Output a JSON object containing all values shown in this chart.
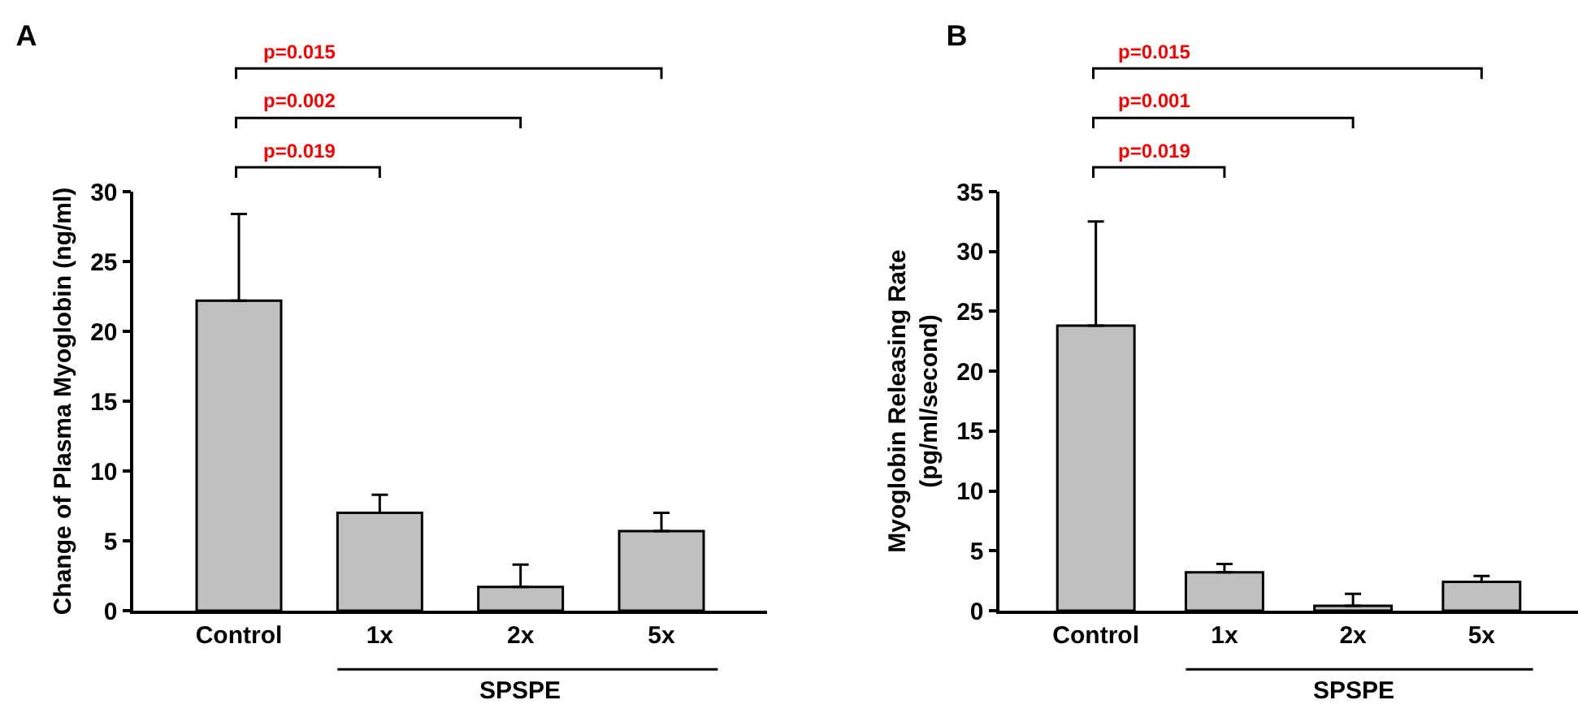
{
  "chart_data": [
    {
      "type": "bar",
      "title": "A",
      "xlabel": "SPSPE",
      "ylabel": "Change of Plasma Myoglobin (ng/ml)",
      "categories": [
        "Control",
        "1x",
        "2x",
        "5x"
      ],
      "values": [
        22.2,
        7.0,
        1.7,
        5.7
      ],
      "errors": [
        [
          22.2,
          28.4
        ],
        [
          7.0,
          8.3
        ],
        [
          1.7,
          3.3
        ],
        [
          5.7,
          7.0
        ]
      ],
      "color": "#c0c0c0",
      "ylim": [
        0,
        30
      ],
      "yticks": [
        0,
        5,
        10,
        15,
        20,
        25,
        30
      ],
      "grid": false,
      "annotations": [
        "p=0.015",
        "p=0.002",
        "p=0.019"
      ]
    },
    {
      "type": "bar",
      "title": "B",
      "xlabel": "SPSPE",
      "ylabel": "Myoglobin Releasing Rate\n(pg/ml/second)",
      "categories": [
        "Control",
        "1x",
        "2x",
        "5x"
      ],
      "values": [
        23.8,
        3.2,
        0.4,
        2.4
      ],
      "errors": [
        [
          23.8,
          32.5
        ],
        [
          3.2,
          3.9
        ],
        [
          0.4,
          1.4
        ],
        [
          2.4,
          2.9
        ]
      ],
      "color": "#c0c0c0",
      "ylim": [
        0,
        35
      ],
      "yticks": [
        0,
        5,
        10,
        15,
        20,
        25,
        30,
        35
      ],
      "grid": false,
      "annotations": [
        "p=0.015",
        "p=0.001",
        "p=0.019"
      ]
    }
  ]
}
